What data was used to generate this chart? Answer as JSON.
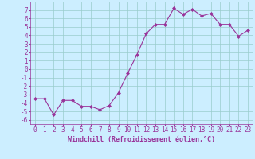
{
  "x": [
    0,
    1,
    2,
    3,
    4,
    5,
    6,
    7,
    8,
    9,
    10,
    11,
    12,
    13,
    14,
    15,
    16,
    17,
    18,
    19,
    20,
    21,
    22,
    23
  ],
  "y": [
    -3.5,
    -3.5,
    -5.4,
    -3.7,
    -3.7,
    -4.4,
    -4.4,
    -4.8,
    -4.3,
    -2.8,
    -0.5,
    1.7,
    4.2,
    5.3,
    5.3,
    7.2,
    6.5,
    7.1,
    6.3,
    6.6,
    5.3,
    5.3,
    3.9,
    4.6
  ],
  "xlabel": "Windchill (Refroidissement éolien,°C)",
  "xlim": [
    -0.5,
    23.5
  ],
  "ylim": [
    -6.5,
    8.0
  ],
  "yticks": [
    -6,
    -5,
    -4,
    -3,
    -2,
    -1,
    0,
    1,
    2,
    3,
    4,
    5,
    6,
    7
  ],
  "xticks": [
    0,
    1,
    2,
    3,
    4,
    5,
    6,
    7,
    8,
    9,
    10,
    11,
    12,
    13,
    14,
    15,
    16,
    17,
    18,
    19,
    20,
    21,
    22,
    23
  ],
  "line_color": "#993399",
  "marker": "D",
  "marker_size": 2,
  "bg_color": "#cceeff",
  "grid_color": "#99cccc",
  "xlabel_fontsize": 6.0,
  "tick_fontsize": 5.5,
  "linewidth": 0.8
}
